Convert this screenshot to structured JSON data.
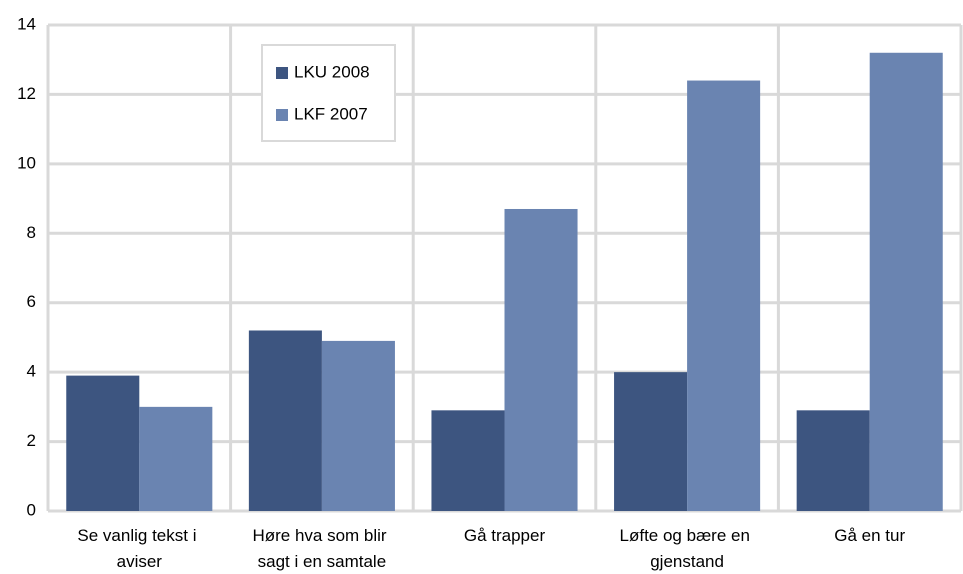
{
  "chart_data": {
    "type": "bar",
    "categories": [
      "Se vanlig tekst i aviser",
      "Høre hva som blir sagt i en samtale",
      "Gå trapper",
      "Løfte og bære en gjenstand",
      "Gå en tur"
    ],
    "series": [
      {
        "name": "LKU 2008",
        "color": "#3d5580",
        "values": [
          3.9,
          5.2,
          2.9,
          4.0,
          2.9
        ]
      },
      {
        "name": "LKF 2007",
        "color": "#6a84b1",
        "values": [
          3.0,
          4.9,
          8.7,
          12.4,
          13.2
        ]
      }
    ],
    "ylim": [
      0,
      14
    ],
    "yticks": [
      0,
      2,
      4,
      6,
      8,
      10,
      12,
      14
    ],
    "grid": true,
    "legend": "top-left"
  }
}
